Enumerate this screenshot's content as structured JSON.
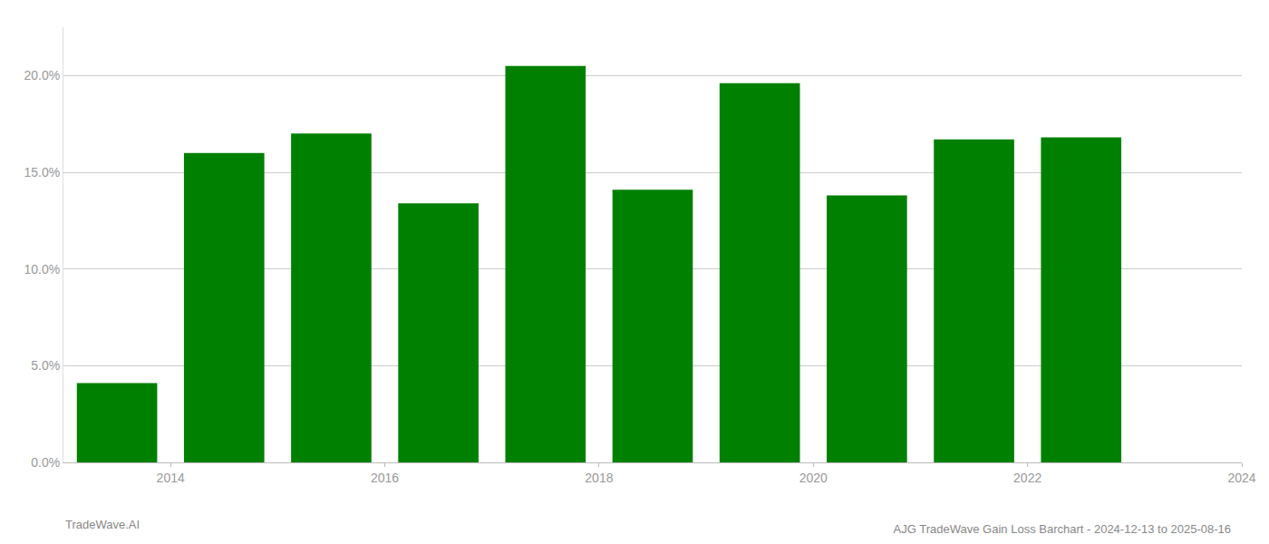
{
  "chart_data": {
    "type": "bar",
    "title": "AJG TradeWave Gain Loss Barchart - 2024-12-13 to 2025-08-16",
    "annotations": [
      "TradeWave.AI"
    ],
    "x": [
      2014,
      2015,
      2016,
      2017,
      2018,
      2019,
      2020,
      2021,
      2022,
      2023
    ],
    "values": [
      0.041,
      0.16,
      0.17,
      0.134,
      0.205,
      0.141,
      0.196,
      0.138,
      0.167,
      0.168
    ],
    "color": "#008000",
    "xlim": [
      2013.5,
      2024.5
    ],
    "xticks": [
      {
        "value": 2014.5,
        "label": "2014"
      },
      {
        "value": 2016.5,
        "label": "2016"
      },
      {
        "value": 2018.5,
        "label": "2018"
      },
      {
        "value": 2020.5,
        "label": "2020"
      },
      {
        "value": 2022.5,
        "label": "2022"
      },
      {
        "value": 2024.5,
        "label": "2024"
      }
    ],
    "ylim": [
      0,
      0.225
    ],
    "yticks": [
      {
        "value": 0.0,
        "label": "0.0%"
      },
      {
        "value": 0.05,
        "label": "5.0%"
      },
      {
        "value": 0.1,
        "label": "10.0%"
      },
      {
        "value": 0.15,
        "label": "15.0%"
      },
      {
        "value": 0.2,
        "label": "20.0%"
      }
    ],
    "grid": true
  }
}
